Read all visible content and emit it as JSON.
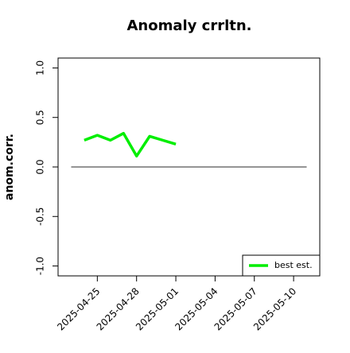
{
  "chart_data": {
    "type": "line",
    "title": "Anomaly crrltn.",
    "y_label": "anom.corr.",
    "x": [
      "2025-04-24",
      "2025-04-25",
      "2025-04-26",
      "2025-04-27",
      "2025-04-28",
      "2025-04-29",
      "2025-04-30",
      "2025-05-01"
    ],
    "series": [
      {
        "name": "best est.",
        "color": "#00ee00",
        "values": [
          0.27,
          0.32,
          0.27,
          0.34,
          0.11,
          0.31,
          0.27,
          0.23
        ]
      }
    ],
    "xlim": [
      "2025-04-22",
      "2025-05-12"
    ],
    "xticks": [
      "2025-04-25",
      "2025-04-28",
      "2025-05-01",
      "2025-05-04",
      "2025-05-07",
      "2025-05-10"
    ],
    "highlight_tick_index": 2,
    "highlight_color": "#228b22",
    "ylim": [
      -1.1,
      1.1
    ],
    "yticks": [
      {
        "value": -1,
        "label": "-1.0"
      },
      -0.5,
      {
        "value": 0,
        "label": "0.0"
      },
      0.5,
      {
        "value": 1,
        "label": "1.0"
      }
    ],
    "reference_line": {
      "value": 0,
      "x": [
        "2025-04-23",
        "2025-05-11"
      ],
      "color": "#555555"
    },
    "legend": "bottom-right"
  }
}
